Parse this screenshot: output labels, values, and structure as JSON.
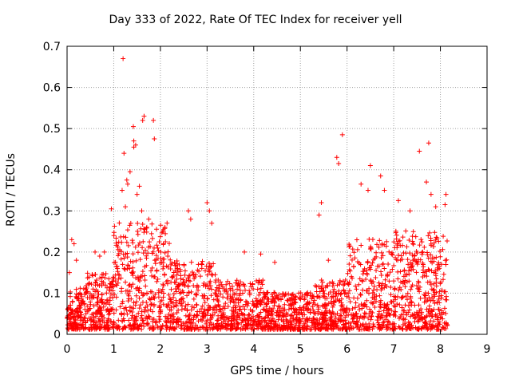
{
  "chart_data": {
    "type": "scatter",
    "title": "Day 333 of 2022, Rate Of TEC Index for receiver yell",
    "xlabel": "GPS time / hours",
    "ylabel": "ROTI / TECUs",
    "xlim": [
      0,
      9
    ],
    "ylim": [
      0,
      0.7
    ],
    "xticks": [
      "0",
      "1",
      "2",
      "3",
      "4",
      "5",
      "6",
      "7",
      "8",
      "9"
    ],
    "yticks": [
      "0",
      "0.1",
      "0.2",
      "0.3",
      "0.4",
      "0.5",
      "0.6",
      "0.7"
    ],
    "grid": true,
    "marker": "+",
    "color": "#ff0000",
    "points": [
      [
        1.2,
        0.67
      ],
      [
        1.42,
        0.505
      ],
      [
        1.62,
        0.52
      ],
      [
        1.65,
        0.53
      ],
      [
        1.85,
        0.52
      ],
      [
        1.87,
        0.475
      ],
      [
        1.43,
        0.47
      ],
      [
        1.43,
        0.455
      ],
      [
        1.47,
        0.46
      ],
      [
        1.22,
        0.44
      ],
      [
        1.35,
        0.395
      ],
      [
        1.28,
        0.375
      ],
      [
        1.3,
        0.365
      ],
      [
        1.55,
        0.36
      ],
      [
        1.18,
        0.35
      ],
      [
        1.5,
        0.34
      ],
      [
        0.95,
        0.305
      ],
      [
        1.25,
        0.31
      ],
      [
        1.6,
        0.3
      ],
      [
        1.75,
        0.28
      ],
      [
        2.05,
        0.25
      ],
      [
        2.6,
        0.3
      ],
      [
        2.65,
        0.28
      ],
      [
        3.0,
        0.32
      ],
      [
        3.05,
        0.3
      ],
      [
        3.1,
        0.27
      ],
      [
        5.9,
        0.485
      ],
      [
        5.78,
        0.43
      ],
      [
        5.82,
        0.415
      ],
      [
        6.5,
        0.41
      ],
      [
        6.72,
        0.385
      ],
      [
        7.55,
        0.445
      ],
      [
        7.75,
        0.465
      ],
      [
        7.7,
        0.37
      ],
      [
        7.8,
        0.34
      ],
      [
        8.12,
        0.34
      ],
      [
        5.45,
        0.32
      ],
      [
        5.4,
        0.29
      ],
      [
        6.3,
        0.365
      ],
      [
        6.45,
        0.35
      ],
      [
        6.8,
        0.35
      ],
      [
        7.1,
        0.325
      ],
      [
        7.35,
        0.3
      ],
      [
        7.9,
        0.31
      ],
      [
        8.1,
        0.315
      ],
      [
        0.05,
        0.15
      ],
      [
        0.1,
        0.23
      ],
      [
        0.15,
        0.22
      ],
      [
        0.2,
        0.18
      ],
      [
        0.6,
        0.2
      ],
      [
        0.7,
        0.19
      ],
      [
        0.8,
        0.2
      ],
      [
        3.8,
        0.2
      ],
      [
        4.45,
        0.175
      ],
      [
        5.6,
        0.18
      ],
      [
        4.15,
        0.195
      ]
    ]
  }
}
